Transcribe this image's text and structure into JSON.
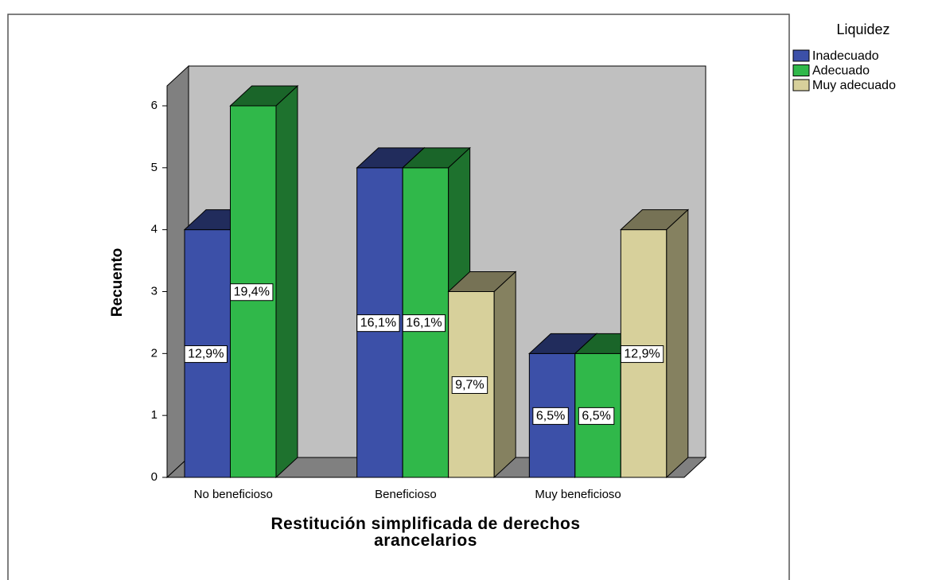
{
  "chart_data": {
    "type": "bar3d",
    "x_label": "Restitución simplificada de derechos arancelarios",
    "y_label": "Recuento",
    "legend_title": "Liquidez",
    "legend": "top-right",
    "categories": [
      "No beneficioso",
      "Beneficioso",
      "Muy beneficioso"
    ],
    "series": [
      {
        "name": "Inadecuado",
        "color": "#3c50a8",
        "values": [
          4,
          5,
          2
        ],
        "value_labels": [
          "12,9%",
          "16,1%",
          "6,5%"
        ]
      },
      {
        "name": "Adecuado",
        "color": "#30b84a",
        "values": [
          6,
          5,
          2
        ],
        "value_labels": [
          "19,4%",
          "16,1%",
          "6,5%"
        ]
      },
      {
        "name": "Muy adecuado",
        "color": "#d7d09b",
        "values": [
          null,
          3,
          4
        ],
        "value_labels": [
          null,
          "9,7%",
          "12,9%"
        ]
      }
    ],
    "ylim": [
      0,
      6
    ],
    "yticks": [
      0,
      1,
      2,
      3,
      4,
      5,
      6
    ]
  }
}
